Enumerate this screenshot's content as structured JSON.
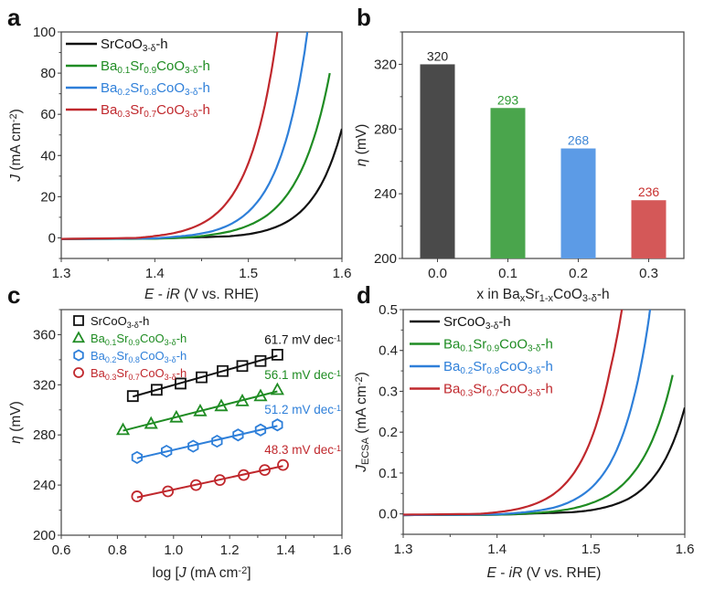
{
  "chart_data": [
    {
      "panel": "a",
      "type": "line",
      "xlabel_parts": [
        {
          "t": "E",
          "i": true
        },
        {
          "t": " - "
        },
        {
          "t": "iR",
          "i": true
        },
        {
          "t": " (V vs. RHE)"
        }
      ],
      "ylabel_parts": [
        {
          "t": "J",
          "i": true
        },
        {
          "t": " (mA cm"
        },
        {
          "t": "-2",
          "sup": true
        },
        {
          "t": ")"
        }
      ],
      "xlim": [
        1.3,
        1.6
      ],
      "ylim": [
        -10,
        100
      ],
      "xticks": [
        "1.3",
        "1.4",
        "1.5",
        "1.6"
      ],
      "xtick_values": [
        1.3,
        1.4,
        1.5,
        1.6
      ],
      "yticks": [
        "0",
        "20",
        "40",
        "60",
        "80",
        "100"
      ],
      "ytick_values": [
        0,
        20,
        40,
        60,
        80,
        100
      ],
      "legend_position": "top-left",
      "series": [
        {
          "name": "SrCoO3-δ-h",
          "color": "#111111",
          "x": [
            1.3,
            1.4,
            1.44,
            1.48,
            1.5,
            1.52,
            1.54,
            1.56,
            1.58,
            1.6
          ],
          "y": [
            -0.5,
            -0.3,
            0.2,
            0.8,
            1.8,
            3.8,
            7.5,
            14.6,
            27.8,
            53.0
          ]
        },
        {
          "name": "Ba0.1Sr0.9CoO3-δ-h",
          "color": "#1f8c23",
          "x": [
            1.3,
            1.4,
            1.44,
            1.46,
            1.48,
            1.5,
            1.52,
            1.54,
            1.56,
            1.58,
            1.587
          ],
          "y": [
            -0.6,
            -0.4,
            0.4,
            1.5,
            3.1,
            6.0,
            11.0,
            20.1,
            36.2,
            64.9,
            80.0
          ]
        },
        {
          "name": "Ba0.2Sr0.8CoO3-δ-h",
          "color": "#2e7fd9",
          "x": [
            1.3,
            1.4,
            1.42,
            1.44,
            1.46,
            1.48,
            1.5,
            1.52,
            1.54,
            1.56,
            1.563
          ],
          "y": [
            -0.6,
            -0.2,
            0.5,
            1.4,
            3.1,
            6.4,
            12.7,
            24.5,
            47.1,
            90.1,
            100.0
          ]
        },
        {
          "name": "Ba0.3Sr0.7CoO3-δ-h",
          "color": "#c0282d",
          "x": [
            1.3,
            1.38,
            1.4,
            1.42,
            1.44,
            1.46,
            1.48,
            1.5,
            1.52,
            1.531
          ],
          "y": [
            -0.5,
            0.0,
            0.9,
            2.3,
            4.9,
            9.7,
            18.9,
            36.3,
            69.6,
            100.0
          ]
        }
      ]
    },
    {
      "panel": "b",
      "type": "bar",
      "categories": [
        "0.0",
        "0.1",
        "0.2",
        "0.3"
      ],
      "values": [
        320,
        293,
        268,
        236
      ],
      "data_labels": [
        "320",
        "293",
        "268",
        "236"
      ],
      "bar_colors": [
        "#4a4a4a",
        "#4aa54c",
        "#5c9be6",
        "#d45858"
      ],
      "label_colors": [
        "#222222",
        "#2e9a33",
        "#3d86d6",
        "#c8302f"
      ],
      "xlabel_parts": [
        {
          "t": "x in Ba"
        },
        {
          "t": "x",
          "sub": true
        },
        {
          "t": "Sr"
        },
        {
          "t": "1-x",
          "sub": true
        },
        {
          "t": "CoO"
        },
        {
          "t": "3-δ",
          "sub": true
        },
        {
          "t": "-h"
        }
      ],
      "ylabel_parts": [
        {
          "t": "η",
          "i": true
        },
        {
          "t": " (mV)"
        }
      ],
      "ylim": [
        200,
        340
      ],
      "yticks": [
        "200",
        "240",
        "280",
        "320"
      ],
      "ytick_values": [
        200,
        240,
        280,
        320
      ]
    },
    {
      "panel": "c",
      "type": "scatter",
      "xlabel_parts": [
        {
          "t": "log ["
        },
        {
          "t": "J",
          "i": true
        },
        {
          "t": " (mA cm"
        },
        {
          "t": "-2",
          "sup": true
        },
        {
          "t": "]"
        }
      ],
      "ylabel_parts": [
        {
          "t": "η",
          "i": true
        },
        {
          "t": " (mV)"
        }
      ],
      "xlim": [
        0.6,
        1.6
      ],
      "ylim": [
        200,
        380
      ],
      "xticks": [
        "0.6",
        "0.8",
        "1.0",
        "1.2",
        "1.4",
        "1.6"
      ],
      "xtick_values": [
        0.6,
        0.8,
        1.0,
        1.2,
        1.4,
        1.6
      ],
      "yticks": [
        "200",
        "240",
        "280",
        "320",
        "360"
      ],
      "ytick_values": [
        200,
        240,
        280,
        320,
        360
      ],
      "legend_position": "top-left",
      "series": [
        {
          "name": "SrCoO3-δ-h",
          "color": "#111111",
          "marker": "square",
          "tafel_slope": "61.7 mV dec",
          "x": [
            0.855,
            0.94,
            1.025,
            1.1,
            1.175,
            1.245,
            1.31,
            1.37
          ],
          "y": [
            311,
            316,
            321,
            326,
            331,
            335,
            339,
            344
          ]
        },
        {
          "name": "Ba0.1Sr0.9CoO3-δ-h",
          "color": "#1f8c23",
          "marker": "triangle",
          "tafel_slope": "56.1 mV dec",
          "x": [
            0.82,
            0.92,
            1.01,
            1.095,
            1.17,
            1.245,
            1.31,
            1.37
          ],
          "y": [
            284,
            289,
            294,
            299,
            303,
            307,
            311,
            316
          ]
        },
        {
          "name": "Ba0.2Sr0.8CoO3-δ-h",
          "color": "#2e7fd9",
          "marker": "hexagon",
          "tafel_slope": "51.2 mV dec",
          "x": [
            0.87,
            0.975,
            1.07,
            1.155,
            1.23,
            1.31,
            1.37
          ],
          "y": [
            262,
            267,
            271,
            275,
            280,
            284,
            288
          ]
        },
        {
          "name": "Ba0.3Sr0.7CoO3-δ-h",
          "color": "#c0282d",
          "marker": "circle",
          "tafel_slope": "48.3 mV dec",
          "x": [
            0.87,
            0.98,
            1.08,
            1.165,
            1.25,
            1.325,
            1.39
          ],
          "y": [
            231,
            235,
            240,
            244,
            248,
            252,
            256
          ]
        }
      ]
    },
    {
      "panel": "d",
      "type": "line",
      "xlabel_parts": [
        {
          "t": "E",
          "i": true
        },
        {
          "t": " - "
        },
        {
          "t": "iR",
          "i": true
        },
        {
          "t": " (V vs. RHE)"
        }
      ],
      "ylabel_parts": [
        {
          "t": "J",
          "i": true
        },
        {
          "t": "ECSA",
          "sub": true
        },
        {
          "t": " (mA cm"
        },
        {
          "t": "-2",
          "sup": true
        },
        {
          "t": ")"
        }
      ],
      "xlim": [
        1.3,
        1.6
      ],
      "ylim": [
        -0.05,
        0.5
      ],
      "xticks": [
        "1.3",
        "1.4",
        "1.5",
        "1.6"
      ],
      "xtick_values": [
        1.3,
        1.4,
        1.5,
        1.6
      ],
      "yticks": [
        "0.0",
        "0.1",
        "0.2",
        "0.3",
        "0.4",
        "0.5"
      ],
      "ytick_values": [
        0.0,
        0.1,
        0.2,
        0.3,
        0.4,
        0.5
      ],
      "legend_position": "top-left",
      "series": [
        {
          "name": "SrCoO3-δ-h",
          "color": "#111111",
          "x": [
            1.3,
            1.4,
            1.44,
            1.48,
            1.5,
            1.52,
            1.54,
            1.56,
            1.58,
            1.6
          ],
          "y": [
            -0.003,
            -0.002,
            0.001,
            0.004,
            0.009,
            0.019,
            0.037,
            0.072,
            0.137,
            0.26
          ]
        },
        {
          "name": "Ba0.1Sr0.9CoO3-δ-h",
          "color": "#1f8c23",
          "x": [
            1.3,
            1.4,
            1.44,
            1.46,
            1.48,
            1.5,
            1.52,
            1.54,
            1.56,
            1.58,
            1.587
          ],
          "y": [
            -0.003,
            -0.002,
            0.002,
            0.006,
            0.013,
            0.026,
            0.047,
            0.086,
            0.154,
            0.276,
            0.34
          ]
        },
        {
          "name": "Ba0.2Sr0.8CoO3-δ-h",
          "color": "#2e7fd9",
          "x": [
            1.3,
            1.4,
            1.42,
            1.44,
            1.46,
            1.48,
            1.5,
            1.52,
            1.54,
            1.56,
            1.563
          ],
          "y": [
            -0.003,
            -0.001,
            0.002,
            0.007,
            0.015,
            0.032,
            0.063,
            0.122,
            0.236,
            0.451,
            0.5
          ]
        },
        {
          "name": "Ba0.3Sr0.7CoO3-δ-h",
          "color": "#c0282d",
          "x": [
            1.3,
            1.38,
            1.4,
            1.42,
            1.44,
            1.46,
            1.48,
            1.5,
            1.52,
            1.533
          ],
          "y": [
            -0.002,
            0.0,
            0.004,
            0.011,
            0.024,
            0.048,
            0.094,
            0.181,
            0.348,
            0.5
          ]
        }
      ]
    }
  ],
  "panel_letters": [
    "a",
    "b",
    "c",
    "d"
  ],
  "legend_labels": [
    [
      {
        "t": "SrCoO"
      },
      {
        "t": "3-δ",
        "sub": true
      },
      {
        "t": "-h"
      }
    ],
    [
      {
        "t": "Ba"
      },
      {
        "t": "0.1",
        "sub": true
      },
      {
        "t": "Sr"
      },
      {
        "t": "0.9",
        "sub": true
      },
      {
        "t": "CoO"
      },
      {
        "t": "3-δ",
        "sub": true
      },
      {
        "t": "-h"
      }
    ],
    [
      {
        "t": "Ba"
      },
      {
        "t": "0.2",
        "sub": true
      },
      {
        "t": "Sr"
      },
      {
        "t": "0.8",
        "sub": true
      },
      {
        "t": "CoO"
      },
      {
        "t": "3-δ",
        "sub": true
      },
      {
        "t": "-h"
      }
    ],
    [
      {
        "t": "Ba"
      },
      {
        "t": "0.3",
        "sub": true
      },
      {
        "t": "Sr"
      },
      {
        "t": "0.7",
        "sub": true
      },
      {
        "t": "CoO"
      },
      {
        "t": "3-δ",
        "sub": true
      },
      {
        "t": "-h"
      }
    ]
  ],
  "slope_unit_sup": "-1"
}
